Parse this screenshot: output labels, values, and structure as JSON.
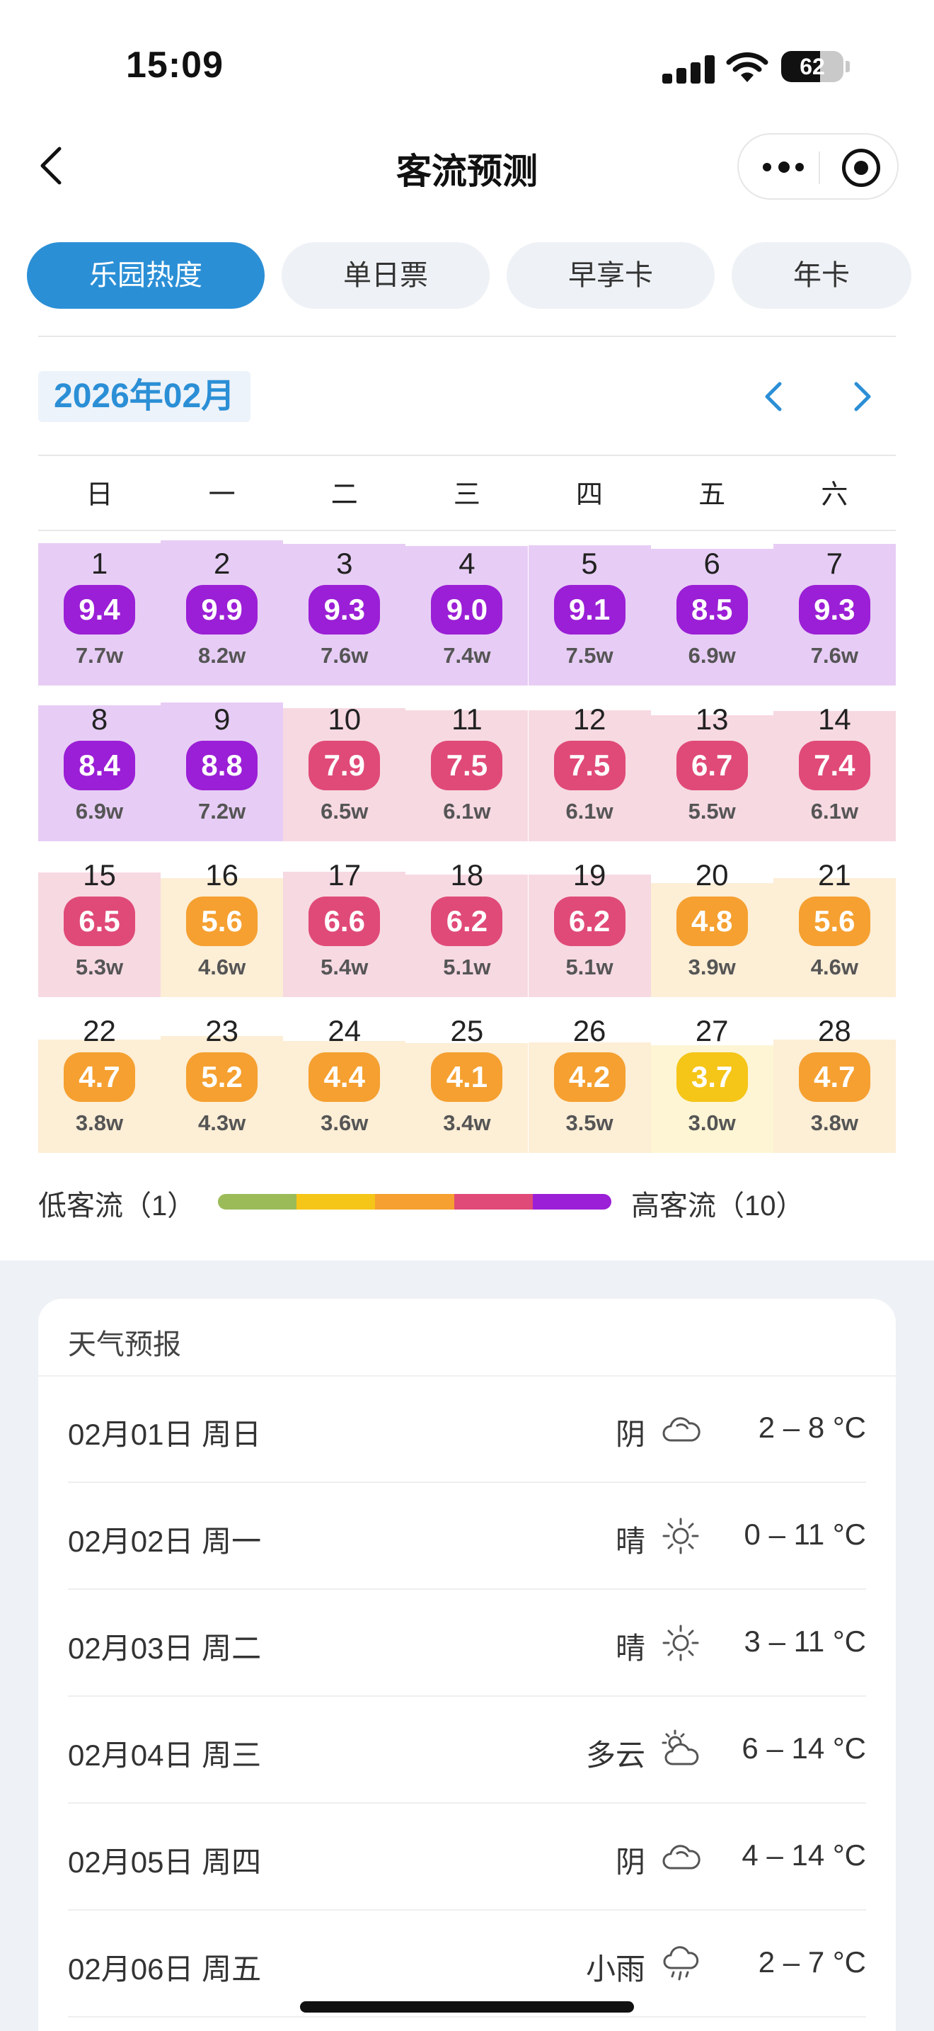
{
  "status": {
    "time": "15:09",
    "battery": "62",
    "battery_percent": 62
  },
  "nav": {
    "title": "客流预测"
  },
  "tabs": [
    {
      "label": "乐园热度",
      "active": true
    },
    {
      "label": "单日票",
      "active": false
    },
    {
      "label": "早享卡",
      "active": false
    },
    {
      "label": "年卡",
      "active": false
    }
  ],
  "calendar": {
    "month": "2026年02月",
    "weekdays": [
      "日",
      "一",
      "二",
      "三",
      "四",
      "五",
      "六"
    ],
    "days": [
      {
        "d": "1",
        "score": "9.4",
        "visitors": "7.7w"
      },
      {
        "d": "2",
        "score": "9.9",
        "visitors": "8.2w"
      },
      {
        "d": "3",
        "score": "9.3",
        "visitors": "7.6w"
      },
      {
        "d": "4",
        "score": "9.0",
        "visitors": "7.4w"
      },
      {
        "d": "5",
        "score": "9.1",
        "visitors": "7.5w"
      },
      {
        "d": "6",
        "score": "8.5",
        "visitors": "6.9w"
      },
      {
        "d": "7",
        "score": "9.3",
        "visitors": "7.6w"
      },
      {
        "d": "8",
        "score": "8.4",
        "visitors": "6.9w"
      },
      {
        "d": "9",
        "score": "8.8",
        "visitors": "7.2w"
      },
      {
        "d": "10",
        "score": "7.9",
        "visitors": "6.5w"
      },
      {
        "d": "11",
        "score": "7.5",
        "visitors": "6.1w"
      },
      {
        "d": "12",
        "score": "7.5",
        "visitors": "6.1w"
      },
      {
        "d": "13",
        "score": "6.7",
        "visitors": "5.5w"
      },
      {
        "d": "14",
        "score": "7.4",
        "visitors": "6.1w"
      },
      {
        "d": "15",
        "score": "6.5",
        "visitors": "5.3w"
      },
      {
        "d": "16",
        "score": "5.6",
        "visitors": "4.6w"
      },
      {
        "d": "17",
        "score": "6.6",
        "visitors": "5.4w"
      },
      {
        "d": "18",
        "score": "6.2",
        "visitors": "5.1w"
      },
      {
        "d": "19",
        "score": "6.2",
        "visitors": "5.1w"
      },
      {
        "d": "20",
        "score": "4.8",
        "visitors": "3.9w"
      },
      {
        "d": "21",
        "score": "5.6",
        "visitors": "4.6w"
      },
      {
        "d": "22",
        "score": "4.7",
        "visitors": "3.8w"
      },
      {
        "d": "23",
        "score": "5.2",
        "visitors": "4.3w"
      },
      {
        "d": "24",
        "score": "4.4",
        "visitors": "3.6w"
      },
      {
        "d": "25",
        "score": "4.1",
        "visitors": "3.4w"
      },
      {
        "d": "26",
        "score": "4.2",
        "visitors": "3.5w"
      },
      {
        "d": "27",
        "score": "3.7",
        "visitors": "3.0w"
      },
      {
        "d": "28",
        "score": "4.7",
        "visitors": "3.8w"
      }
    ]
  },
  "legend": {
    "low": "低客流（1）",
    "high": "高客流（10）",
    "colors": [
      "#9bbb59",
      "#f5c518",
      "#f5a030",
      "#e04a78",
      "#9b1fd6"
    ]
  },
  "colors": {
    "accent": "#2b8fd6",
    "level_purple": "#9b1fd6",
    "level_pink": "#e04a78",
    "level_orange": "#f5a030",
    "level_yellow": "#f5c518"
  },
  "weather": {
    "title": "天气预报",
    "rows": [
      {
        "date": "02月01日 周日",
        "cond": "阴",
        "icon": "cloudy-icon",
        "temp": "2 – 8 °C"
      },
      {
        "date": "02月02日 周一",
        "cond": "晴",
        "icon": "sunny-icon",
        "temp": "0 – 11 °C"
      },
      {
        "date": "02月03日 周二",
        "cond": "晴",
        "icon": "sunny-icon",
        "temp": "3 – 11 °C"
      },
      {
        "date": "02月04日 周三",
        "cond": "多云",
        "icon": "partly-cloudy-icon",
        "temp": "6 – 14 °C"
      },
      {
        "date": "02月05日 周四",
        "cond": "阴",
        "icon": "cloudy-icon",
        "temp": "4 – 14 °C"
      },
      {
        "date": "02月06日 周五",
        "cond": "小雨",
        "icon": "light-rain-icon",
        "temp": "2 – 7 °C"
      }
    ]
  }
}
